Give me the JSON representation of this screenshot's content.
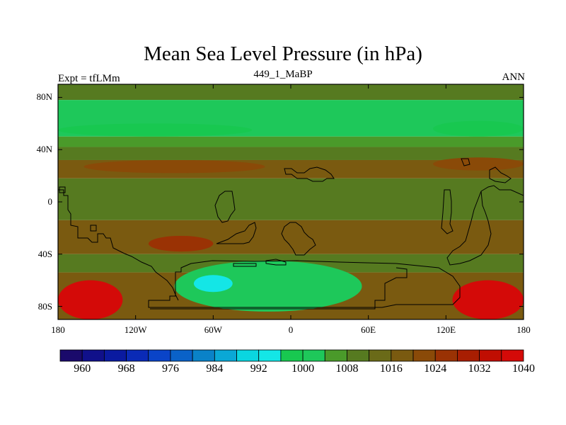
{
  "title": "Mean Sea Level Pressure (in hPa)",
  "subtitle_left": "Expt = tfLMm",
  "subtitle_center": "449_1_MaBP",
  "subtitle_right": "ANN",
  "lat_labels": [
    "80N",
    "40N",
    "0",
    "40S",
    "80S"
  ],
  "lon_labels": [
    "180",
    "120W",
    "60W",
    "0",
    "60E",
    "120E",
    "180"
  ],
  "colorbar": {
    "colors": [
      "#1a0a6b",
      "#10108a",
      "#0a1aa0",
      "#0a2ab6",
      "#0a44c8",
      "#0a62c8",
      "#0a82c8",
      "#0aa8d6",
      "#0ad6e0",
      "#14e6e6",
      "#18c850",
      "#1ec85a",
      "#4a9a2a",
      "#567a20",
      "#6a6a18",
      "#7a5a10",
      "#8a4a08",
      "#9a3204",
      "#a81e02",
      "#c00e02",
      "#d40a08"
    ],
    "labels": [
      "960",
      "968",
      "976",
      "984",
      "992",
      "1000",
      "1008",
      "1016",
      "1024",
      "1032",
      "1040"
    ]
  },
  "chart_data": {
    "type": "filled-contour-map",
    "variable": "Mean Sea Level Pressure",
    "units": "hPa",
    "levels": [
      960,
      964,
      968,
      972,
      976,
      980,
      984,
      988,
      992,
      996,
      1000,
      1004,
      1008,
      1012,
      1016,
      1020,
      1024,
      1028,
      1032,
      1036,
      1040
    ],
    "lon_range": [
      -180,
      180
    ],
    "lat_range": [
      -90,
      90
    ],
    "bands": [
      {
        "lat": [
          78,
          90
        ],
        "pressure": 1008
      },
      {
        "lat": [
          50,
          78
        ],
        "pressure": 1000
      },
      {
        "lat": [
          42,
          50
        ],
        "pressure": 1004
      },
      {
        "lat": [
          32,
          42
        ],
        "pressure": 1008
      },
      {
        "lat": [
          18,
          32
        ],
        "pressure": 1016
      },
      {
        "lat": [
          -14,
          18
        ],
        "pressure": 1008
      },
      {
        "lat": [
          -40,
          -14
        ],
        "pressure": 1016
      },
      {
        "lat": [
          -54,
          -40
        ],
        "pressure": 1008
      },
      {
        "lat": [
          -90,
          -54
        ],
        "pressure": 1016
      }
    ],
    "features": [
      {
        "name": "north-low-west",
        "lon": [
          -180,
          -30
        ],
        "lat": [
          50,
          60
        ],
        "pressure": 996
      },
      {
        "name": "north-low-east",
        "lon": [
          110,
          180
        ],
        "lat": [
          50,
          62
        ],
        "pressure": 996
      },
      {
        "name": "antarctic-low",
        "lon": [
          -90,
          55
        ],
        "lat": [
          -84,
          -45
        ],
        "pressure": 1000
      },
      {
        "name": "antarctic-low-core",
        "lon": [
          -75,
          -45
        ],
        "lat": [
          -69,
          -56
        ],
        "pressure": 992
      },
      {
        "name": "high-southwest",
        "lon": [
          -180,
          -130
        ],
        "lat": [
          -90,
          -60
        ],
        "pressure": 1036
      },
      {
        "name": "high-southeast",
        "lon": [
          125,
          180
        ],
        "lat": [
          -90,
          -60
        ],
        "pressure": 1036
      },
      {
        "name": "high-south-pacific",
        "lon": [
          -110,
          -60
        ],
        "lat": [
          -38,
          -26
        ],
        "pressure": 1024
      },
      {
        "name": "high-north-pacific",
        "lon": [
          -160,
          -20
        ],
        "lat": [
          22,
          32
        ],
        "pressure": 1020
      },
      {
        "name": "high-north-east",
        "lon": [
          110,
          180
        ],
        "lat": [
          24,
          34
        ],
        "pressure": 1020
      }
    ]
  }
}
